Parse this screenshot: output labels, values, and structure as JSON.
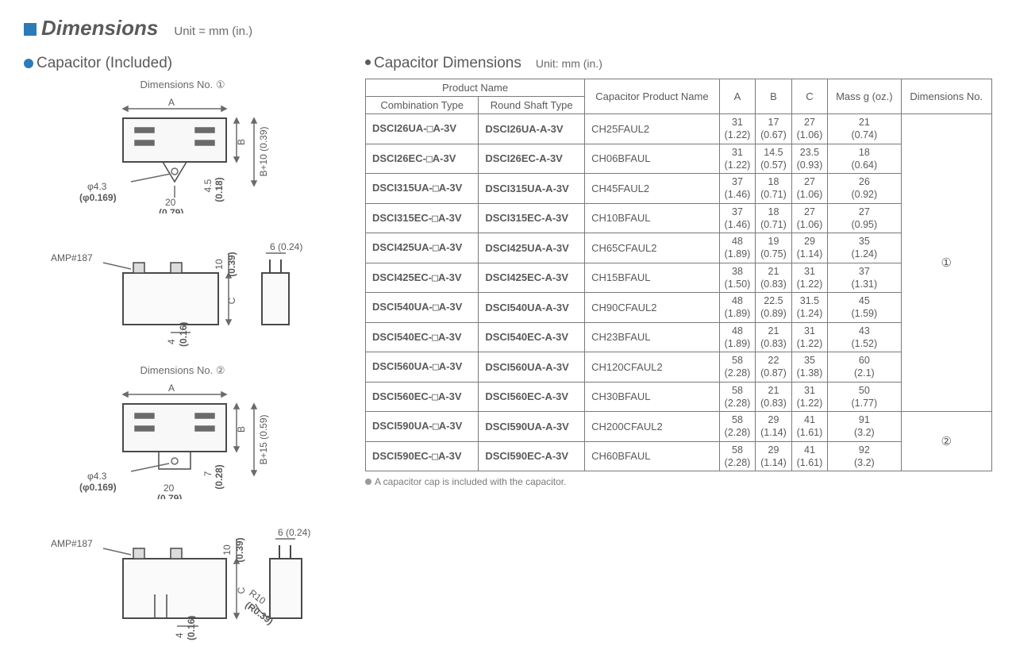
{
  "title": "Dimensions",
  "unit_label": "Unit = mm (in.)",
  "left": {
    "section_title": "Capacitor (Included)",
    "dim1_label": "Dimensions No. ①",
    "dim2_label": "Dimensions No. ②",
    "labels": {
      "A": "A",
      "B": "B",
      "C": "C",
      "phi43": "φ4.3",
      "phi0169": "(φ0.169)",
      "d20": "20",
      "d079": "(0.79)",
      "d45": "4.5",
      "d018": "(0.18)",
      "b10": "B+10 (0.39)",
      "b15": "B+15 (0.59)",
      "d7": "7",
      "d028": "(0.28)",
      "amp187": "AMP#187",
      "d10": "10",
      "d039": "(0.39)",
      "d6": "6 (0.24)",
      "d4": "4",
      "d016": "(0.16)",
      "r10": "R10",
      "r039": "(R0.39)"
    }
  },
  "right": {
    "section_title": "Capacitor Dimensions",
    "section_unit": "Unit: mm (in.)",
    "headers": {
      "product_name": "Product Name",
      "combination": "Combination Type",
      "round_shaft": "Round Shaft Type",
      "cap_pn": "Capacitor Product Name",
      "A": "A",
      "B": "B",
      "C": "C",
      "mass": "Mass g (oz.)",
      "dim_no": "Dimensions No."
    },
    "rows": [
      {
        "comb": "DSCI26UA-□A-3V",
        "round": "DSCI26UA-A-3V",
        "cpn": "CH25FAUL2",
        "A": "31",
        "Ai": "(1.22)",
        "B": "17",
        "Bi": "(0.67)",
        "C": "27",
        "Ci": "(1.06)",
        "M": "21",
        "Mi": "(0.74)"
      },
      {
        "comb": "DSCI26EC-□A-3V",
        "round": "DSCI26EC-A-3V",
        "cpn": "CH06BFAUL",
        "A": "31",
        "Ai": "(1.22)",
        "B": "14.5",
        "Bi": "(0.57)",
        "C": "23.5",
        "Ci": "(0.93)",
        "M": "18",
        "Mi": "(0.64)"
      },
      {
        "comb": "DSCI315UA-□A-3V",
        "round": "DSCI315UA-A-3V",
        "cpn": "CH45FAUL2",
        "A": "37",
        "Ai": "(1.46)",
        "B": "18",
        "Bi": "(0.71)",
        "C": "27",
        "Ci": "(1.06)",
        "M": "26",
        "Mi": "(0.92)"
      },
      {
        "comb": "DSCI315EC-□A-3V",
        "round": "DSCI315EC-A-3V",
        "cpn": "CH10BFAUL",
        "A": "37",
        "Ai": "(1.46)",
        "B": "18",
        "Bi": "(0.71)",
        "C": "27",
        "Ci": "(1.06)",
        "M": "27",
        "Mi": "(0.95)"
      },
      {
        "comb": "DSCI425UA-□A-3V",
        "round": "DSCI425UA-A-3V",
        "cpn": "CH65CFAUL2",
        "A": "48",
        "Ai": "(1.89)",
        "B": "19",
        "Bi": "(0.75)",
        "C": "29",
        "Ci": "(1.14)",
        "M": "35",
        "Mi": "(1.24)"
      },
      {
        "comb": "DSCI425EC-□A-3V",
        "round": "DSCI425EC-A-3V",
        "cpn": "CH15BFAUL",
        "A": "38",
        "Ai": "(1.50)",
        "B": "21",
        "Bi": "(0.83)",
        "C": "31",
        "Ci": "(1.22)",
        "M": "37",
        "Mi": "(1.31)"
      },
      {
        "comb": "DSCI540UA-□A-3V",
        "round": "DSCI540UA-A-3V",
        "cpn": "CH90CFAUL2",
        "A": "48",
        "Ai": "(1.89)",
        "B": "22.5",
        "Bi": "(0.89)",
        "C": "31.5",
        "Ci": "(1.24)",
        "M": "45",
        "Mi": "(1.59)"
      },
      {
        "comb": "DSCI540EC-□A-3V",
        "round": "DSCI540EC-A-3V",
        "cpn": "CH23BFAUL",
        "A": "48",
        "Ai": "(1.89)",
        "B": "21",
        "Bi": "(0.83)",
        "C": "31",
        "Ci": "(1.22)",
        "M": "43",
        "Mi": "(1.52)"
      },
      {
        "comb": "DSCI560UA-□A-3V",
        "round": "DSCI560UA-A-3V",
        "cpn": "CH120CFAUL2",
        "A": "58",
        "Ai": "(2.28)",
        "B": "22",
        "Bi": "(0.87)",
        "C": "35",
        "Ci": "(1.38)",
        "M": "60",
        "Mi": "(2.1)"
      },
      {
        "comb": "DSCI560EC-□A-3V",
        "round": "DSCI560EC-A-3V",
        "cpn": "CH30BFAUL",
        "A": "58",
        "Ai": "(2.28)",
        "B": "21",
        "Bi": "(0.83)",
        "C": "31",
        "Ci": "(1.22)",
        "M": "50",
        "Mi": "(1.77)"
      },
      {
        "comb": "DSCI590UA-□A-3V",
        "round": "DSCI590UA-A-3V",
        "cpn": "CH200CFAUL2",
        "A": "58",
        "Ai": "(2.28)",
        "B": "29",
        "Bi": "(1.14)",
        "C": "41",
        "Ci": "(1.61)",
        "M": "91",
        "Mi": "(3.2)"
      },
      {
        "comb": "DSCI590EC-□A-3V",
        "round": "DSCI590EC-A-3V",
        "cpn": "CH60BFAUL",
        "A": "58",
        "Ai": "(2.28)",
        "B": "29",
        "Bi": "(1.14)",
        "C": "41",
        "Ci": "(1.61)",
        "M": "92",
        "Mi": "(3.2)"
      }
    ],
    "dim_group1": "①",
    "dim_group2": "②",
    "footnote": "A capacitor cap is included with the capacitor."
  }
}
